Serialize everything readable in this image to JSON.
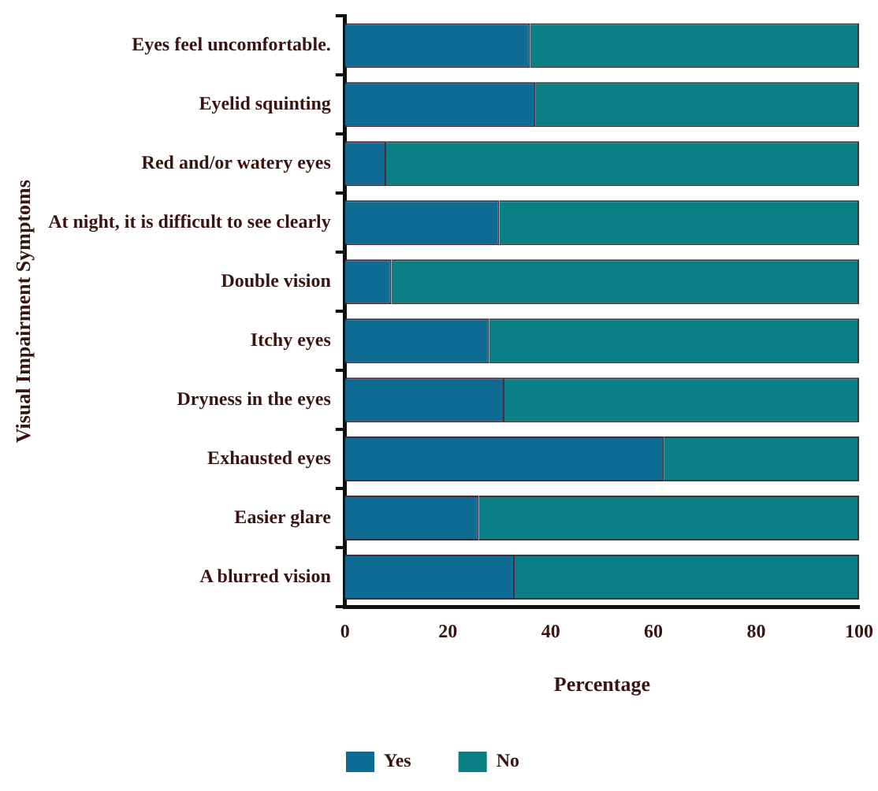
{
  "chart_data": {
    "type": "bar",
    "orientation": "horizontal",
    "stacked": true,
    "xlabel": "Percentage",
    "ylabel": "Visual Impairment Symptoms",
    "categories": [
      "Eyes feel uncomfortable.",
      "Eyelid squinting",
      "Red and/or watery eyes",
      "At night, it is difficult to see clearly",
      "Double vision",
      "Itchy eyes",
      "Dryness in the eyes",
      "Exhausted eyes",
      "Easier glare",
      "A blurred vision"
    ],
    "series": [
      {
        "name": "Yes",
        "color": "#0e6b94",
        "values": [
          36,
          37,
          8,
          30,
          9,
          28,
          31,
          62,
          26,
          33
        ]
      },
      {
        "name": "No",
        "color": "#0b7f86",
        "values": [
          64,
          63,
          92,
          70,
          91,
          72,
          69,
          38,
          74,
          67
        ]
      }
    ],
    "xlim": [
      0,
      100
    ],
    "xticks": [
      0,
      20,
      40,
      60,
      80,
      100
    ],
    "grid": false,
    "legend": "bottom"
  }
}
